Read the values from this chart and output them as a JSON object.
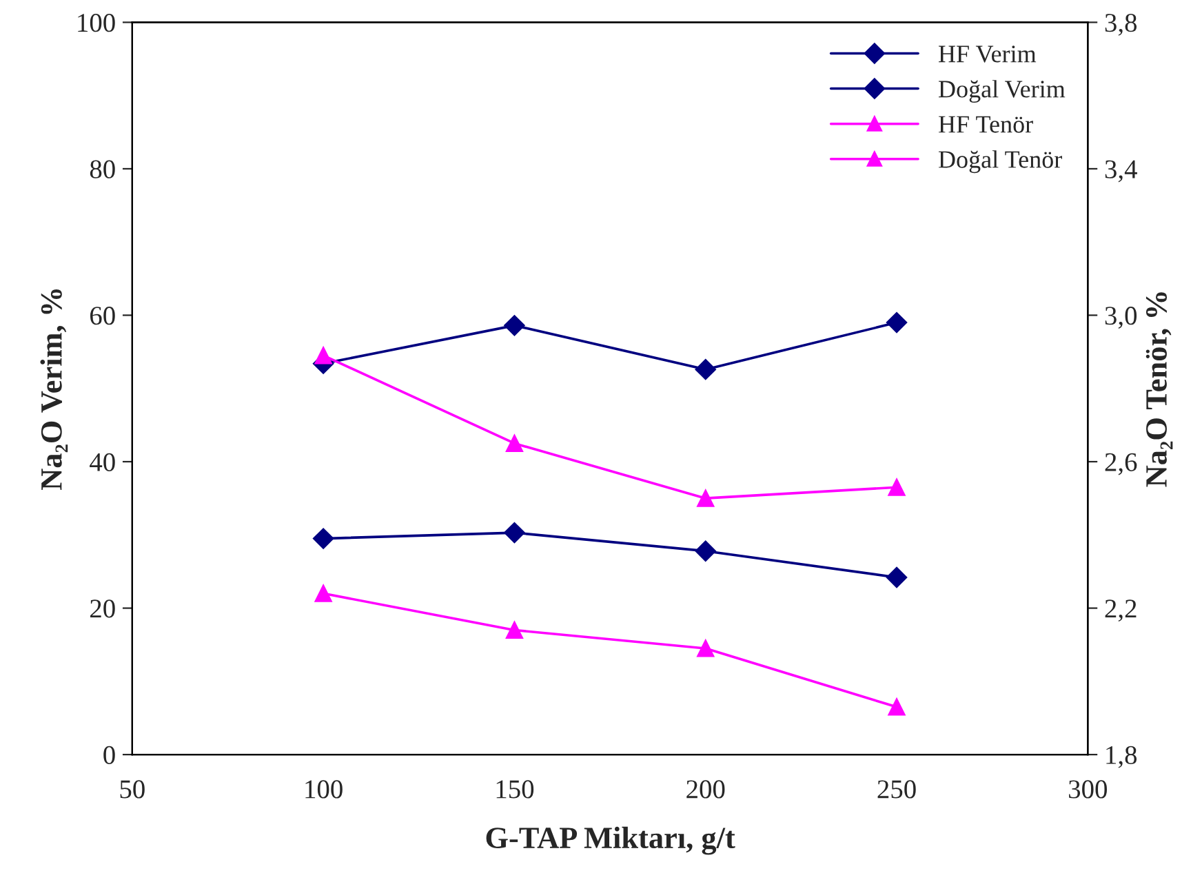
{
  "chart_data": {
    "type": "line",
    "xlabel": "G-TAP Miktarı, g/t",
    "ylabel": "Na₂O Verim, %",
    "y2label": "Na₂O Tenör, %",
    "xlim": [
      50,
      300
    ],
    "xticks": [
      50,
      100,
      150,
      200,
      250,
      300
    ],
    "ylim": [
      0,
      100
    ],
    "yticks": [
      0,
      20,
      40,
      60,
      80,
      100
    ],
    "y2lim": [
      1.8,
      3.8
    ],
    "y2ticks": [
      {
        "value": 1.8,
        "label": "1,8"
      },
      {
        "value": 2.2,
        "label": "2,2"
      },
      {
        "value": 2.6,
        "label": "2,6"
      },
      {
        "value": 3.0,
        "label": "3,0"
      },
      {
        "value": 3.4,
        "label": "3,4"
      },
      {
        "value": 3.8,
        "label": "3,8"
      }
    ],
    "x": [
      100,
      150,
      200,
      250
    ],
    "grid": false,
    "legend": "top right",
    "line_style": "solid",
    "series": [
      {
        "name": "HF Verim",
        "color": "#000080",
        "marker": "diamond",
        "values": [
          29.5,
          30.3,
          27.8,
          24.2
        ]
      },
      {
        "name": "Doğal Verim",
        "color": "#000080",
        "marker": "diamond",
        "values": [
          53.4,
          58.6,
          52.6,
          59.0
        ]
      },
      {
        "name": "HF Tenör",
        "color": "#ff00ff",
        "marker": "triangle",
        "axis": "y2",
        "values": [
          2.89,
          2.65,
          2.5,
          2.53
        ]
      },
      {
        "name": "Doğal Tenör",
        "color": "#ff00ff",
        "marker": "triangle",
        "axis": "y2",
        "values": [
          2.24,
          2.14,
          2.09,
          1.93
        ]
      }
    ]
  }
}
